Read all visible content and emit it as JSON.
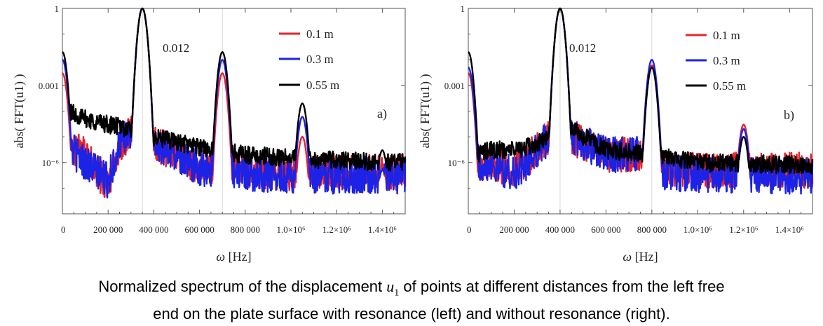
{
  "colors": {
    "red": "#e8232a",
    "blue": "#1c22e6",
    "black": "#000000",
    "grid": "#d9d9d9"
  },
  "caption": {
    "part1": "Normalized spectrum of the displacement ",
    "var": "u",
    "sub": "1",
    "part2": " of points at different distances from the left free",
    "line2": "end on the plate surface with resonance (left) and without resonance (right)."
  },
  "chart_data": [
    {
      "type": "line",
      "panel_label": "a)",
      "annotation": "0.012",
      "xlabel": "ω [Hz]",
      "ylabel": "abs( FFT(u1) )",
      "yscale": "log",
      "xlim": [
        0,
        1500000
      ],
      "ylim": [
        1e-08,
        1
      ],
      "xticks": [
        {
          "value": 0,
          "label": "0"
        },
        {
          "value": 200000,
          "label": "200 000"
        },
        {
          "value": 400000,
          "label": "400 000"
        },
        {
          "value": 600000,
          "label": "600 000"
        },
        {
          "value": 800000,
          "label": "800 000"
        },
        {
          "value": 1000000,
          "label": "1.0×10⁶"
        },
        {
          "value": 1200000,
          "label": "1.2×10⁶"
        },
        {
          "value": 1400000,
          "label": "1.4×10⁶"
        }
      ],
      "yticks": [
        {
          "value": 1,
          "label": "1"
        },
        {
          "value": 0.001,
          "label": "0.001"
        },
        {
          "value": 1e-06,
          "label": "10⁻⁶"
        }
      ],
      "legend_position": "top-right",
      "series": [
        {
          "name": "0.1 m",
          "color": "#e8232a",
          "peaks": [
            [
              0,
              0.003
            ],
            [
              350000,
              1
            ],
            [
              700000,
              0.003
            ],
            [
              1050000,
              1e-05
            ],
            [
              1400000,
              5e-07
            ]
          ],
          "floor": [
            [
              0,
              4e-06
            ],
            [
              30000,
              4e-06
            ],
            [
              100000,
              2e-06
            ],
            [
              200000,
              1e-07
            ],
            [
              250000,
              5e-06
            ],
            [
              320000,
              2e-05
            ],
            [
              400000,
              6e-06
            ],
            [
              500000,
              2e-06
            ],
            [
              600000,
              6e-07
            ],
            [
              800000,
              5e-07
            ],
            [
              1000000,
              4e-07
            ],
            [
              1100000,
              4e-07
            ],
            [
              1300000,
              4e-07
            ],
            [
              1500000,
              4e-07
            ]
          ]
        },
        {
          "name": "0.3 m",
          "color": "#1c22e6",
          "peaks": [
            [
              0,
              0.01
            ],
            [
              350000,
              1
            ],
            [
              700000,
              0.01
            ],
            [
              1050000,
              6e-05
            ],
            [
              1400000,
              5e-07
            ]
          ],
          "floor": [
            [
              0,
              4e-06
            ],
            [
              30000,
              4e-06
            ],
            [
              100000,
              1e-06
            ],
            [
              200000,
              2e-07
            ],
            [
              250000,
              5e-06
            ],
            [
              320000,
              2e-05
            ],
            [
              400000,
              6e-06
            ],
            [
              500000,
              2e-06
            ],
            [
              600000,
              6e-07
            ],
            [
              800000,
              4e-07
            ],
            [
              1000000,
              3e-07
            ],
            [
              1100000,
              3e-07
            ],
            [
              1300000,
              3e-07
            ],
            [
              1500000,
              3e-07
            ]
          ]
        },
        {
          "name": "0.55 m",
          "color": "#000000",
          "peaks": [
            [
              0,
              0.02
            ],
            [
              350000,
              1
            ],
            [
              700000,
              0.02
            ],
            [
              1050000,
              0.0002
            ],
            [
              1400000,
              3e-06
            ]
          ],
          "floor": [
            [
              0,
              0.0001
            ],
            [
              30000,
              0.0001
            ],
            [
              100000,
              5e-05
            ],
            [
              200000,
              3e-05
            ],
            [
              300000,
              2e-05
            ],
            [
              400000,
              1e-05
            ],
            [
              600000,
              4e-06
            ],
            [
              800000,
              2e-06
            ],
            [
              1000000,
              1.5e-06
            ],
            [
              1200000,
              1.2e-06
            ],
            [
              1500000,
              1e-06
            ]
          ]
        }
      ]
    },
    {
      "type": "line",
      "panel_label": "b)",
      "annotation": "0.012",
      "xlabel": "ω [Hz]",
      "ylabel": "abs( FFT(u1) )",
      "yscale": "log",
      "xlim": [
        0,
        1500000
      ],
      "ylim": [
        1e-08,
        1
      ],
      "xticks": [
        {
          "value": 0,
          "label": "0"
        },
        {
          "value": 200000,
          "label": "200 000"
        },
        {
          "value": 400000,
          "label": "400 000"
        },
        {
          "value": 600000,
          "label": "600 000"
        },
        {
          "value": 800000,
          "label": "800 000"
        },
        {
          "value": 1000000,
          "label": "1.0×10⁶"
        },
        {
          "value": 1200000,
          "label": "1.2×10⁶"
        },
        {
          "value": 1400000,
          "label": "1.4×10⁶"
        }
      ],
      "yticks": [
        {
          "value": 1,
          "label": "1"
        },
        {
          "value": 0.001,
          "label": "0.001"
        },
        {
          "value": 1e-06,
          "label": "10⁻⁶"
        }
      ],
      "legend_position": "top-right",
      "series": [
        {
          "name": "0.1 m",
          "color": "#e8232a",
          "peaks": [
            [
              0,
              0.003
            ],
            [
              400000,
              1
            ],
            [
              800000,
              0.006
            ],
            [
              1200000,
              3e-05
            ]
          ],
          "floor": [
            [
              0,
              4e-06
            ],
            [
              30000,
              1e-06
            ],
            [
              100000,
              1e-06
            ],
            [
              200000,
              5e-07
            ],
            [
              300000,
              3e-06
            ],
            [
              380000,
              2e-05
            ],
            [
              450000,
              1e-05
            ],
            [
              600000,
              2e-06
            ],
            [
              750000,
              2e-06
            ],
            [
              850000,
              6e-07
            ],
            [
              1100000,
              5e-07
            ],
            [
              1300000,
              5e-07
            ],
            [
              1500000,
              5e-07
            ]
          ]
        },
        {
          "name": "0.3 m",
          "color": "#1c22e6",
          "peaks": [
            [
              0,
              0.005
            ],
            [
              400000,
              1
            ],
            [
              800000,
              0.01
            ],
            [
              1200000,
              2e-05
            ]
          ],
          "floor": [
            [
              0,
              4e-06
            ],
            [
              30000,
              1e-06
            ],
            [
              100000,
              1e-06
            ],
            [
              200000,
              3e-07
            ],
            [
              300000,
              3e-06
            ],
            [
              380000,
              2e-05
            ],
            [
              450000,
              1e-05
            ],
            [
              600000,
              2e-06
            ],
            [
              750000,
              2e-06
            ],
            [
              850000,
              4e-07
            ],
            [
              1100000,
              3e-07
            ],
            [
              1300000,
              3e-07
            ],
            [
              1500000,
              3e-07
            ]
          ]
        },
        {
          "name": "0.55 m",
          "color": "#000000",
          "peaks": [
            [
              0,
              0.02
            ],
            [
              400000,
              1
            ],
            [
              800000,
              0.005
            ],
            [
              1200000,
              1e-05
            ]
          ],
          "floor": [
            [
              0,
              3e-06
            ],
            [
              30000,
              2e-06
            ],
            [
              100000,
              3e-06
            ],
            [
              200000,
              3e-06
            ],
            [
              300000,
              5e-06
            ],
            [
              380000,
              2e-05
            ],
            [
              450000,
              2e-05
            ],
            [
              600000,
              3e-06
            ],
            [
              800000,
              2e-06
            ],
            [
              1000000,
              1e-06
            ],
            [
              1200000,
              9e-07
            ],
            [
              1500000,
              8e-07
            ]
          ]
        }
      ]
    }
  ]
}
